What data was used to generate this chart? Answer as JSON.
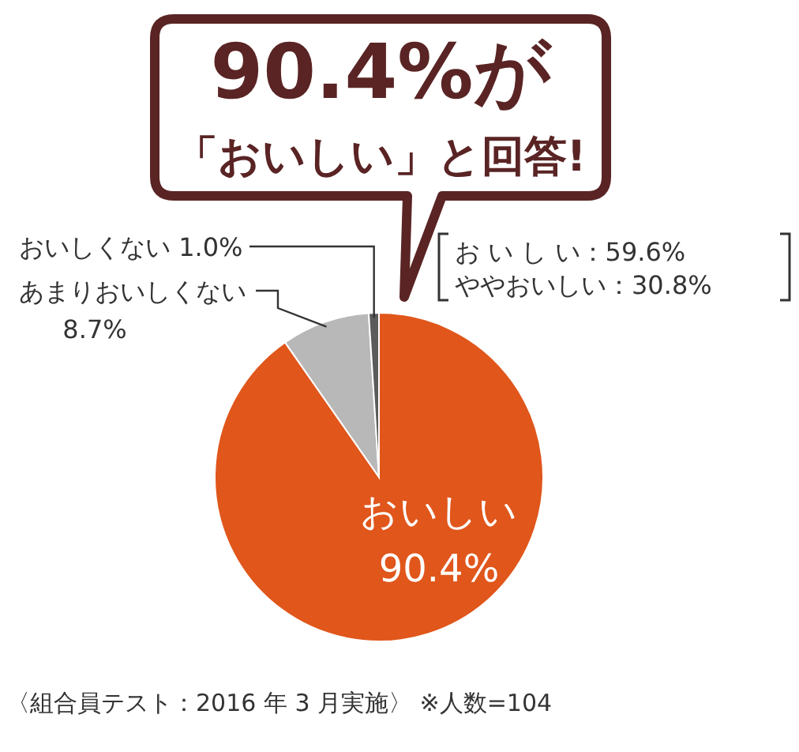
{
  "chart_data": {
    "type": "pie",
    "categories": [
      "おいしい",
      "あまりおいしくない",
      "おいしくない"
    ],
    "values": [
      90.4,
      8.7,
      1.0
    ],
    "value_labels": [
      "90.4%",
      "8.7%",
      "1.0%"
    ],
    "colors": [
      "#e0561b",
      "#b8b8b8",
      "#5b5b5b"
    ],
    "annotations": [
      "90.4%が",
      "「おいしい」と回答!",
      "お い し い：59.6%",
      "ややおいしい：30.8%",
      "〈組合員テスト：2016 年 3 月実施〉 ※人数=104"
    ]
  }
}
